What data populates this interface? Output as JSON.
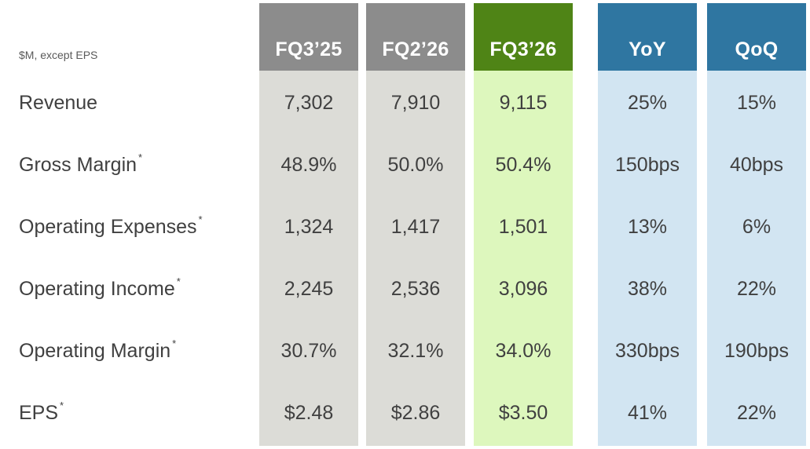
{
  "units_note": "$M, except EPS",
  "columns": [
    {
      "label": "FQ3’25",
      "kind": "hist"
    },
    {
      "label": "FQ2’26",
      "kind": "hist"
    },
    {
      "label": "FQ3’26",
      "kind": "cur"
    },
    {
      "label": "YoY",
      "kind": "chg"
    },
    {
      "label": "QoQ",
      "kind": "chg"
    }
  ],
  "rows": [
    {
      "label": "Revenue",
      "footnote": "",
      "values": [
        "7,302",
        "7,910",
        "9,115",
        "25%",
        "15%"
      ]
    },
    {
      "label": "Gross Margin",
      "footnote": "*",
      "values": [
        "48.9%",
        "50.0%",
        "50.4%",
        "150bps",
        "40bps"
      ]
    },
    {
      "label": "Operating Expenses",
      "footnote": "*",
      "values": [
        "1,324",
        "1,417",
        "1,501",
        "13%",
        "6%"
      ]
    },
    {
      "label": "Operating Income",
      "footnote": "*",
      "values": [
        "2,245",
        "2,536",
        "3,096",
        "38%",
        "22%"
      ]
    },
    {
      "label": "Operating Margin",
      "footnote": "*",
      "values": [
        "30.7%",
        "32.1%",
        "34.0%",
        "330bps",
        "190bps"
      ]
    },
    {
      "label": "EPS",
      "footnote": "*",
      "values": [
        "$2.48",
        "$2.86",
        "$3.50",
        "41%",
        "22%"
      ]
    }
  ],
  "colors": {
    "hist_header": "#8c8c8c",
    "hist_body": "#dcdcd7",
    "current_header": "#4f8416",
    "current_body": "#ddf7bd",
    "change_header": "#2f76a1",
    "change_body": "#d2e5f2"
  }
}
